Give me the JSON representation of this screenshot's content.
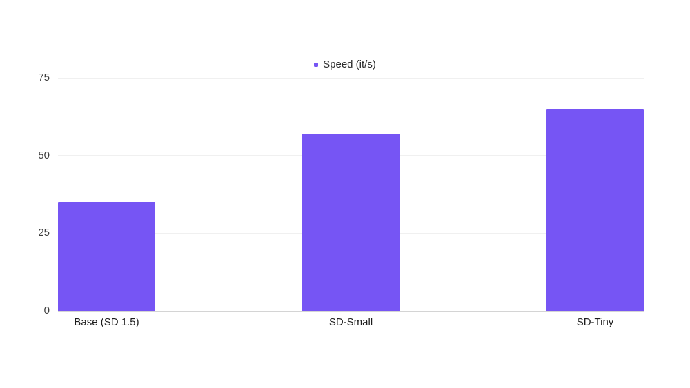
{
  "chart_data": {
    "type": "bar",
    "title": "",
    "legend": "Speed (it/s)",
    "legend_position": "top-center",
    "categories": [
      "Base (SD 1.5)",
      "SD-Small",
      "SD-Tiny"
    ],
    "values": [
      35,
      57,
      65
    ],
    "series": [
      {
        "name": "Speed (it/s)",
        "values": [
          35,
          57,
          65
        ]
      }
    ],
    "xlabel": "",
    "ylabel": "",
    "ylim": [
      0,
      75
    ],
    "yticks": [
      0,
      25,
      50,
      75
    ],
    "grid": true,
    "colors": {
      "bar": "#7655F4",
      "grid_line": "#f0f0f0",
      "axis_line": "#d4d4d4",
      "tick_text": "#3d3d3d",
      "label_text": "#1c1c1c"
    }
  }
}
